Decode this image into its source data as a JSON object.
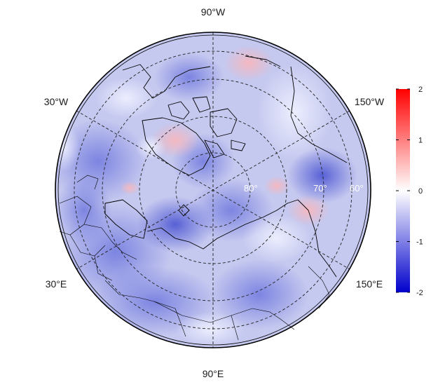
{
  "map": {
    "projection": "north-polar-stereographic",
    "longitude_labels": {
      "top": "90°W",
      "upper_left": "30°W",
      "upper_right": "150°W",
      "lower_left": "30°E",
      "lower_right": "150°E",
      "bottom": "90°E"
    },
    "latitude_labels": [
      "80°",
      "70°",
      "60°"
    ],
    "colorbar": {
      "min": -2,
      "max": 2,
      "ticks": [
        "2",
        "1",
        "0",
        "-1",
        "-2"
      ],
      "colors": {
        "high": "#ff0000",
        "mid": "#ffffff",
        "low": "#0000cc"
      }
    },
    "field_background": "#c5c8ef"
  }
}
